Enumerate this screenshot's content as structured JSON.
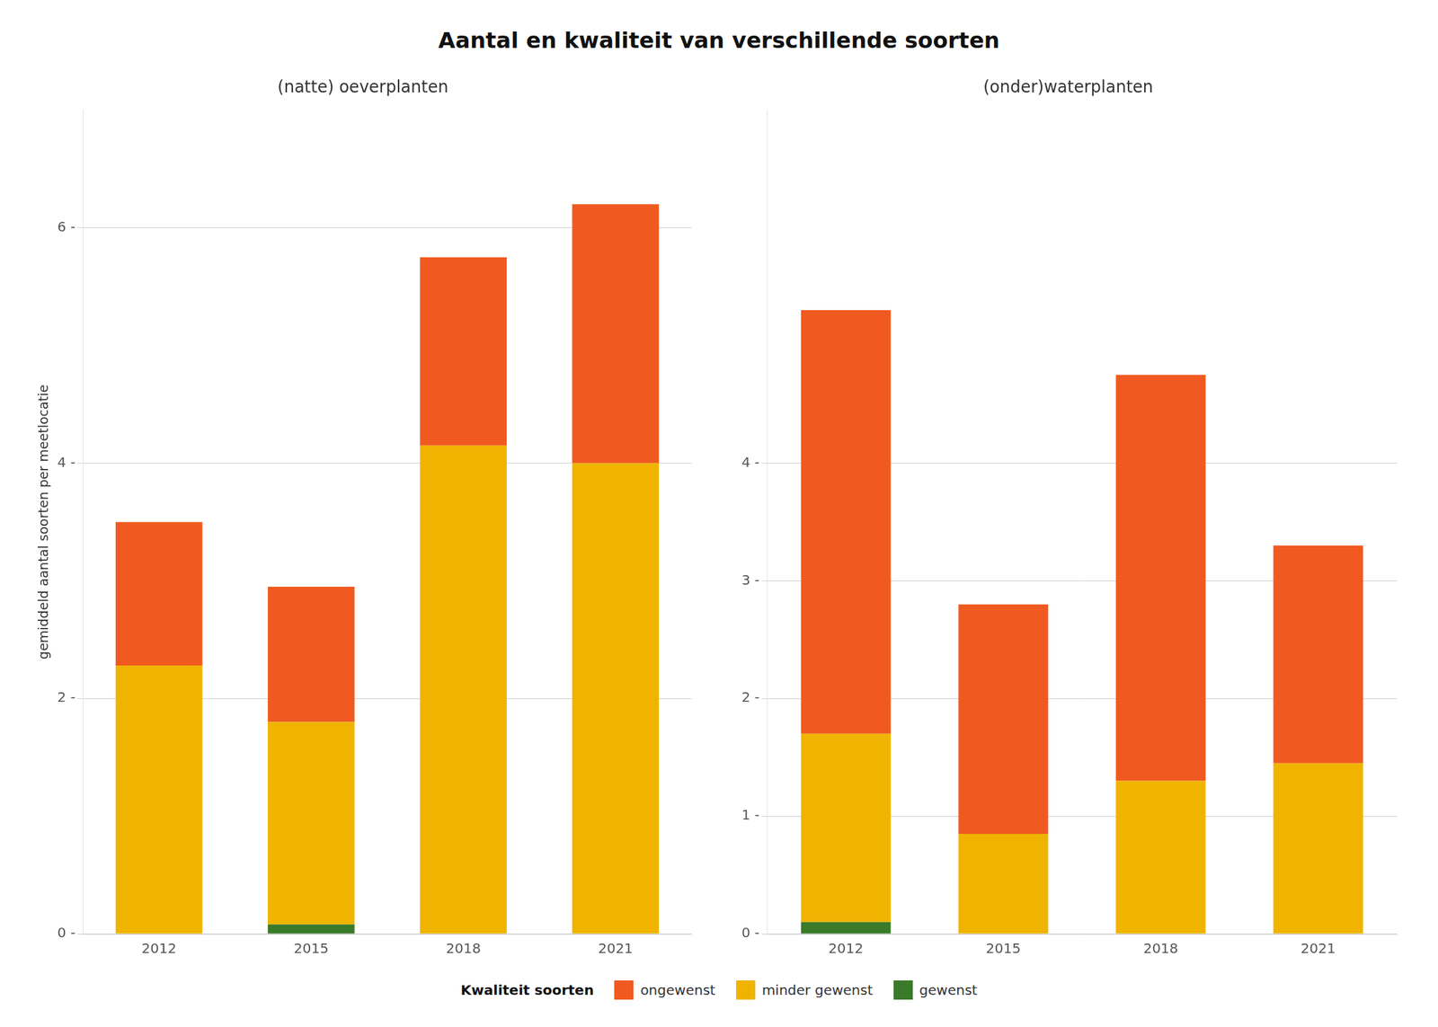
{
  "title": "Aantal en kwaliteit van verschillende soorten",
  "legend": "bottom",
  "legend_title": "Kwaliteit soorten",
  "chart_data": [
    {
      "type": "bar",
      "stacked": true,
      "grid": true,
      "subtitle": "(natte) oeverplanten",
      "ylabel": "gemiddeld aantal soorten per meetlocatie",
      "categories": [
        "2012",
        "2015",
        "2018",
        "2021"
      ],
      "series": [
        {
          "name": "gewenst",
          "color": "#3A7A2A",
          "values": [
            0.0,
            0.08,
            0.0,
            0.0
          ]
        },
        {
          "name": "minder gewenst",
          "color": "#F0B400",
          "values": [
            2.28,
            1.72,
            4.15,
            4.0
          ]
        },
        {
          "name": "ongewenst",
          "color": "#F05A20",
          "values": [
            1.22,
            1.15,
            1.6,
            2.2
          ]
        }
      ],
      "ylim": [
        0,
        7.0
      ],
      "yticks": [
        {
          "value": 0,
          "label": "0 -"
        },
        {
          "value": 2,
          "label": "2 -"
        },
        {
          "value": 4,
          "label": "4 -"
        },
        {
          "value": 6,
          "label": "6 -"
        }
      ]
    },
    {
      "type": "bar",
      "stacked": true,
      "grid": true,
      "subtitle": "(onder)waterplanten",
      "categories": [
        "2012",
        "2015",
        "2018",
        "2021"
      ],
      "series": [
        {
          "name": "gewenst",
          "color": "#3A7A2A",
          "values": [
            0.1,
            0.0,
            0.0,
            0.0
          ]
        },
        {
          "name": "minder gewenst",
          "color": "#F0B400",
          "values": [
            1.6,
            0.85,
            1.3,
            1.45
          ]
        },
        {
          "name": "ongewenst",
          "color": "#F05A20",
          "values": [
            3.6,
            1.95,
            3.45,
            1.85
          ]
        }
      ],
      "ylim": [
        0,
        7.0
      ],
      "yticks": [
        {
          "value": 0,
          "label": "0 -"
        },
        {
          "value": 1,
          "label": "1 -"
        },
        {
          "value": 2,
          "label": "2 -"
        },
        {
          "value": 3,
          "label": "3 -"
        },
        {
          "value": 4,
          "label": "4 -"
        }
      ]
    }
  ]
}
